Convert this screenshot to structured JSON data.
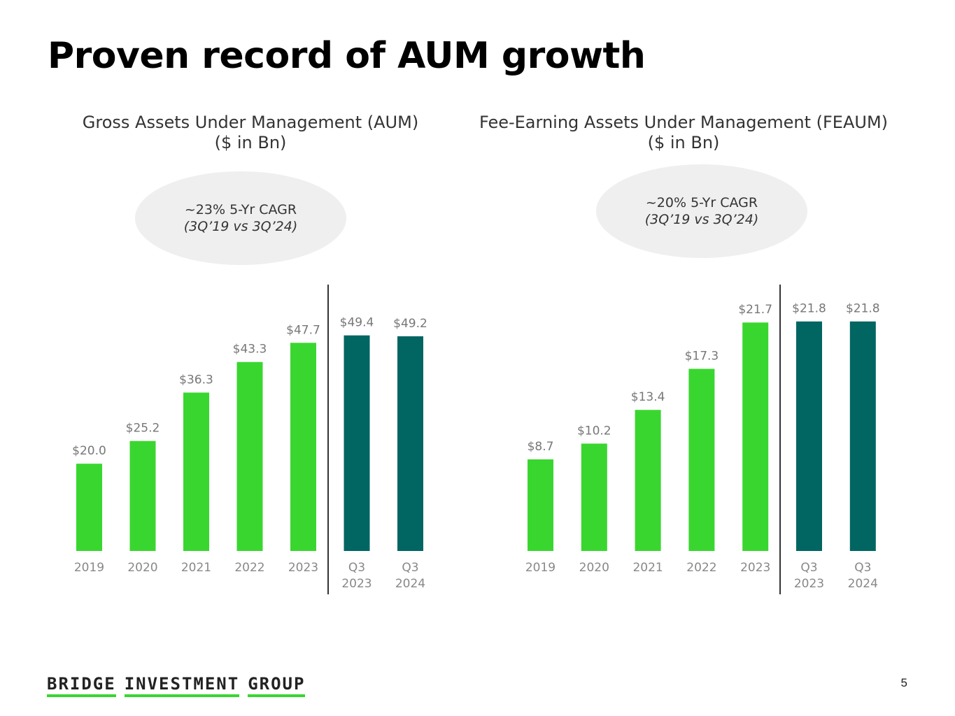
{
  "slide": {
    "title": "Proven record of AUM growth",
    "page_number": "5",
    "logo_words": [
      "BRIDGE",
      "INVESTMENT",
      "GROUP"
    ]
  },
  "colors": {
    "annual": "#3ad630",
    "quarter": "#016562",
    "axis": "#333333"
  },
  "chart_data": [
    {
      "type": "bar",
      "title_line1": "Gross Assets Under Management (AUM)",
      "title_line2": "($ in Bn)",
      "cagr_text": "~23% 5-Yr CAGR",
      "cagr_period": "(3Q’19 vs 3Q’24)",
      "categories": [
        [
          "2019"
        ],
        [
          "2020"
        ],
        [
          "2021"
        ],
        [
          "2022"
        ],
        [
          "2023"
        ],
        [
          "Q3",
          "2023"
        ],
        [
          "Q3",
          "2024"
        ]
      ],
      "values": [
        20.0,
        25.2,
        36.3,
        43.3,
        47.7,
        49.4,
        49.2
      ],
      "value_labels": [
        "$20.0",
        "$25.2",
        "$36.3",
        "$43.3",
        "$47.7",
        "$49.4",
        "$49.2"
      ],
      "series_type": [
        "annual",
        "annual",
        "annual",
        "annual",
        "annual",
        "quarter",
        "quarter"
      ],
      "ylim": [
        0,
        60
      ]
    },
    {
      "type": "bar",
      "title_line1": "Fee-Earning Assets Under Management (FEAUM)",
      "title_line2": "($ in Bn)",
      "cagr_text": "~20% 5-Yr CAGR",
      "cagr_period": "(3Q’19 vs 3Q’24)",
      "categories": [
        [
          "2019"
        ],
        [
          "2020"
        ],
        [
          "2021"
        ],
        [
          "2022"
        ],
        [
          "2023"
        ],
        [
          "Q3",
          "2023"
        ],
        [
          "Q3",
          "2024"
        ]
      ],
      "values": [
        8.7,
        10.2,
        13.4,
        17.3,
        21.7,
        21.8,
        21.8
      ],
      "value_labels": [
        "$8.7",
        "$10.2",
        "$13.4",
        "$17.3",
        "$21.7",
        "$21.8",
        "$21.8"
      ],
      "series_type": [
        "annual",
        "annual",
        "annual",
        "annual",
        "annual",
        "quarter",
        "quarter"
      ],
      "ylim": [
        0,
        26
      ]
    }
  ]
}
